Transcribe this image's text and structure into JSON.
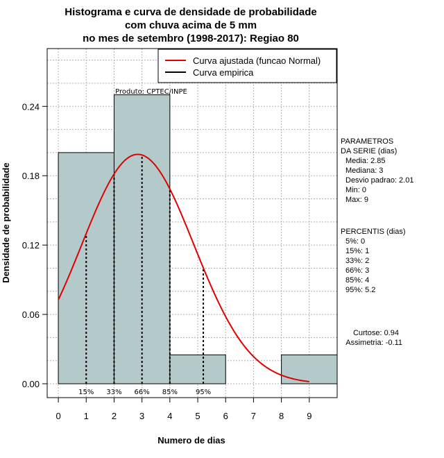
{
  "chart_data": {
    "type": "bar",
    "title_lines": [
      "Histograma e curva de densidade de probabilidade",
      "com chuva acima de 5 mm",
      "no mes de setembro (1998-2017): Regiao 80"
    ],
    "xlabel": "Numero de dias",
    "ylabel": "Densidade de probabilidade",
    "xlim": [
      -0.4,
      10
    ],
    "ylim": [
      -0.012,
      0.29
    ],
    "xticks": [
      "0",
      "1",
      "2",
      "3",
      "4",
      "5",
      "6",
      "7",
      "8",
      "9"
    ],
    "yticks": [
      "0.00",
      "0.06",
      "0.12",
      "0.18",
      "0.24"
    ],
    "grid": true,
    "bins": [
      {
        "from": 0,
        "to": 2,
        "density": 0.2
      },
      {
        "from": 2,
        "to": 4,
        "density": 0.25
      },
      {
        "from": 4,
        "to": 6,
        "density": 0.025
      },
      {
        "from": 6,
        "to": 8,
        "density": 0.0
      },
      {
        "from": 8,
        "to": 10,
        "density": 0.025
      }
    ],
    "bar_color": "#b4caca",
    "curve_color": "#e00000",
    "normal_fit": {
      "mean": 2.85,
      "sd": 2.01,
      "x_from": 0,
      "x_to": 9
    },
    "percentile_lines": [
      {
        "label": "15%",
        "x": 1
      },
      {
        "label": "33%",
        "x": 2
      },
      {
        "label": "66%",
        "x": 3
      },
      {
        "label": "85%",
        "x": 4
      },
      {
        "label": "95%",
        "x": 5.2
      }
    ],
    "legend": {
      "placement": "top-right",
      "entries": [
        {
          "label": "Curva ajustada (funcao Normal)",
          "color": "#e00000"
        },
        {
          "label": "Curva empirica",
          "color": "#000000"
        }
      ]
    },
    "product_note": "Produto: CPTEC/INPE",
    "parametros": {
      "header": [
        "PARAMETROS",
        "DA SERIE (dias)"
      ],
      "lines": [
        "Media: 2.85",
        "Mediana: 3",
        "Desvio padrao: 2.01",
        "Min: 0",
        "Max: 9"
      ]
    },
    "percentis": {
      "header": "PERCENTIS (dias)",
      "lines": [
        "5%: 0",
        "15%: 1",
        "33%: 2",
        "66%: 3",
        "85%: 4",
        "95%: 5.2"
      ]
    },
    "shape_stats": [
      "Curtose: 0.94",
      "Assimetria: -0.11"
    ]
  }
}
